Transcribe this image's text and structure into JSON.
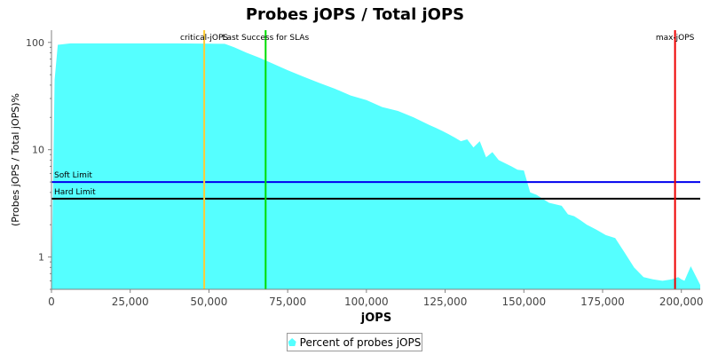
{
  "chart_data": {
    "type": "area",
    "title": "Probes jOPS / Total jOPS",
    "xlabel": "jOPS",
    "ylabel": "(Probes jOPS / Total jOPS)%",
    "y_scale": "log",
    "xlim": [
      0,
      206000
    ],
    "ylim": [
      0.5,
      130
    ],
    "x_ticks": [
      0,
      25000,
      50000,
      75000,
      100000,
      125000,
      150000,
      175000,
      200000
    ],
    "x_tick_labels": [
      "0",
      "25,000",
      "50,000",
      "75,000",
      "100,000",
      "125,000",
      "150,000",
      "175,000",
      "200,000"
    ],
    "y_ticks": [
      1,
      10,
      100
    ],
    "y_tick_labels": [
      "1",
      "10",
      "100"
    ],
    "grid": false,
    "legend_position": "bottom-center",
    "series": [
      {
        "name": "Percent of probes jOPS",
        "color": "#55ffff",
        "x": [
          0,
          1000,
          2000,
          6000,
          20000,
          40000,
          55000,
          58000,
          62000,
          66000,
          70000,
          75000,
          80000,
          85000,
          90000,
          95000,
          100000,
          105000,
          110000,
          115000,
          120000,
          122000,
          124000,
          126000,
          128000,
          130000,
          132000,
          134000,
          136000,
          138000,
          140000,
          142000,
          146000,
          148000,
          150000,
          152000,
          154000,
          158000,
          162000,
          164000,
          166000,
          168000,
          170000,
          173000,
          176000,
          179000,
          182000,
          185000,
          188000,
          191000,
          194000,
          197000,
          199000,
          200000,
          201000,
          203000,
          206000
        ],
        "values": [
          0.5,
          45,
          95,
          98,
          98,
          98,
          97,
          90,
          80,
          72,
          64,
          55,
          48,
          42,
          37,
          32,
          29,
          25,
          23,
          20,
          17,
          16,
          15,
          14,
          13,
          12,
          12.5,
          10.5,
          12,
          8.5,
          9.5,
          8,
          7,
          6.5,
          6.4,
          4,
          3.8,
          3.2,
          3,
          2.5,
          2.4,
          2.2,
          2,
          1.8,
          1.6,
          1.5,
          1.1,
          0.8,
          0.65,
          0.62,
          0.6,
          0.62,
          0.65,
          0.62,
          0.6,
          0.82,
          0.55
        ]
      }
    ],
    "vertical_markers": [
      {
        "label": "critical-jOPS",
        "x": 48500,
        "color": "#ffcc33"
      },
      {
        "label": "Last Success for SLAs",
        "x": 68000,
        "color": "#00dd00"
      },
      {
        "label": "max-jOPS",
        "x": 198000,
        "color": "#ee0000"
      }
    ],
    "horizontal_markers": [
      {
        "label": "Soft Limit",
        "y": 5,
        "color": "#0000ee"
      },
      {
        "label": "Hard Limit",
        "y": 3.5,
        "color": "#000000"
      }
    ]
  }
}
